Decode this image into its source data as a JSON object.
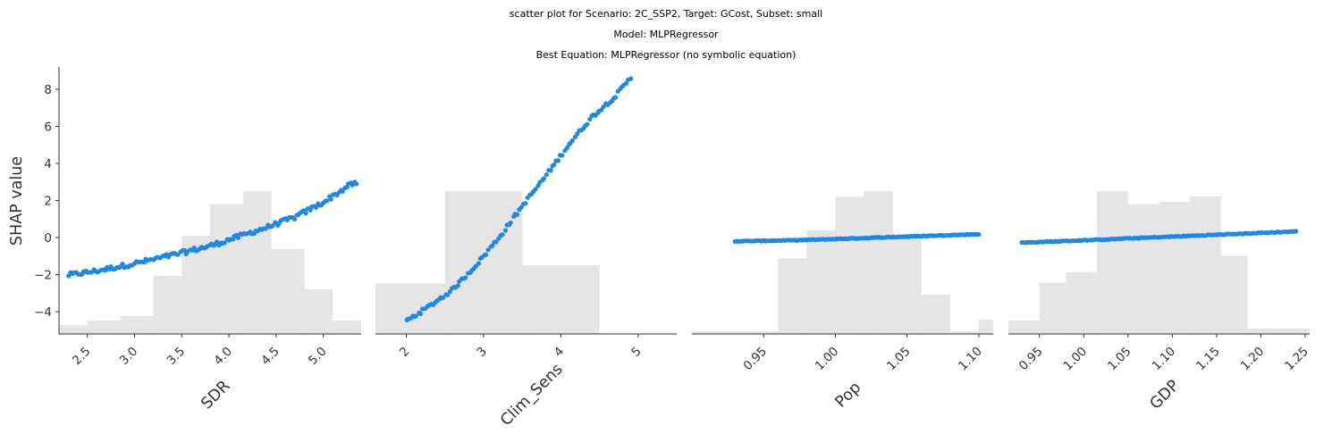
{
  "figure": {
    "title_lines": [
      "scatter plot for Scenario: 2C_SSP2, Target: GCost, Subset: small",
      "Model: MLPRegressor",
      "Best Equation: MLPRegressor (no symbolic equation)"
    ]
  },
  "colors": {
    "points": "#1e88e5",
    "histogram": "#e5e5e5",
    "axis": "#333333"
  },
  "chart_data": [
    {
      "type": "scatter",
      "xlabel": "SDR",
      "ylabel": "SHAP value",
      "xlim": [
        2.2,
        5.4
      ],
      "ylim": [
        -5.2,
        9.2
      ],
      "xticks": [
        2.5,
        3.0,
        3.5,
        4.0,
        4.5,
        5.0
      ],
      "xtick_labels": [
        "2.5",
        "3.0",
        "3.5",
        "4.0",
        "4.5",
        "5.0"
      ],
      "yticks": [
        -4,
        -2,
        0,
        2,
        4,
        6,
        8
      ],
      "ytick_labels": [
        "−4",
        "−2",
        "0",
        "2",
        "4",
        "6",
        "8"
      ],
      "histogram": {
        "edges": [
          2.2,
          2.5,
          2.85,
          3.2,
          3.5,
          3.8,
          4.15,
          4.45,
          4.8,
          5.1,
          5.4
        ],
        "counts": [
          1,
          1.5,
          2,
          6.5,
          11,
          14.5,
          16,
          9.5,
          5,
          1.5
        ]
      },
      "points": {
        "curve": [
          [
            2.2,
            -2.1
          ],
          [
            2.6,
            -1.8
          ],
          [
            3.0,
            -1.4
          ],
          [
            3.4,
            -0.95
          ],
          [
            3.8,
            -0.45
          ],
          [
            4.1,
            0.05
          ],
          [
            4.4,
            0.55
          ],
          [
            4.7,
            1.1
          ],
          [
            5.0,
            1.9
          ],
          [
            5.3,
            2.9
          ]
        ],
        "x_range": [
          2.3,
          5.35
        ],
        "count": 150,
        "noise": 0.12
      }
    },
    {
      "type": "scatter",
      "xlabel": "Clim_Sens",
      "xlim": [
        1.6,
        5.5
      ],
      "ylim": [
        -5.2,
        9.2
      ],
      "xticks": [
        2,
        3,
        4,
        5
      ],
      "xtick_labels": [
        "2",
        "3",
        "4",
        "5"
      ],
      "yticks": [],
      "histogram": {
        "edges": [
          1.6,
          2.5,
          3.5,
          4.5
        ],
        "counts": [
          18,
          51,
          24.5
        ]
      },
      "points": {
        "curve": [
          [
            2.0,
            -4.5
          ],
          [
            2.3,
            -3.7
          ],
          [
            2.6,
            -2.8
          ],
          [
            2.9,
            -1.5
          ],
          [
            3.2,
            0.0
          ],
          [
            3.5,
            1.7
          ],
          [
            3.8,
            3.3
          ],
          [
            4.1,
            5.0
          ],
          [
            4.4,
            6.5
          ],
          [
            4.7,
            7.6
          ],
          [
            4.9,
            8.6
          ]
        ],
        "x_range": [
          2.0,
          4.9
        ],
        "count": 110,
        "noise": 0.1
      }
    },
    {
      "type": "scatter",
      "xlabel": "Pop",
      "xlim": [
        0.9,
        1.11
      ],
      "ylim": [
        -5.2,
        9.2
      ],
      "xticks": [
        0.95,
        1.0,
        1.05,
        1.1
      ],
      "xtick_labels": [
        "0.95",
        "1.00",
        "1.05",
        "1.10"
      ],
      "yticks": [],
      "histogram": {
        "edges": [
          0.9,
          0.94,
          0.96,
          0.98,
          1.0,
          1.02,
          1.04,
          1.06,
          1.08,
          1.1,
          1.11
        ],
        "counts": [
          0.5,
          0.5,
          13.5,
          18.5,
          24.5,
          25.5,
          17.5,
          7,
          0.5,
          2.5
        ]
      },
      "points": {
        "curve": [
          [
            0.93,
            -0.2
          ],
          [
            0.97,
            -0.15
          ],
          [
            1.0,
            -0.08
          ],
          [
            1.03,
            0.0
          ],
          [
            1.06,
            0.08
          ],
          [
            1.1,
            0.18
          ]
        ],
        "x_range": [
          0.93,
          1.1
        ],
        "count": 150,
        "noise": 0.02
      }
    },
    {
      "type": "scatter",
      "xlabel": "GDP",
      "xlim": [
        0.915,
        1.255
      ],
      "ylim": [
        -5.2,
        9.2
      ],
      "xticks": [
        0.95,
        1.0,
        1.05,
        1.1,
        1.15,
        1.2,
        1.25
      ],
      "xtick_labels": [
        "0.95",
        "1.00",
        "1.05",
        "1.10",
        "1.15",
        "1.20",
        "1.25"
      ],
      "yticks": [],
      "histogram": {
        "edges": [
          0.915,
          0.95,
          0.98,
          1.015,
          1.05,
          1.085,
          1.12,
          1.155,
          1.185,
          1.22,
          1.255
        ],
        "counts": [
          2.5,
          9.5,
          11.5,
          26.5,
          24,
          24.5,
          25.5,
          14.5,
          1,
          1
        ]
      },
      "points": {
        "curve": [
          [
            0.93,
            -0.28
          ],
          [
            1.0,
            -0.15
          ],
          [
            1.05,
            -0.05
          ],
          [
            1.1,
            0.05
          ],
          [
            1.15,
            0.15
          ],
          [
            1.24,
            0.33
          ]
        ],
        "x_range": [
          0.93,
          1.24
        ],
        "count": 150,
        "noise": 0.02
      }
    }
  ]
}
